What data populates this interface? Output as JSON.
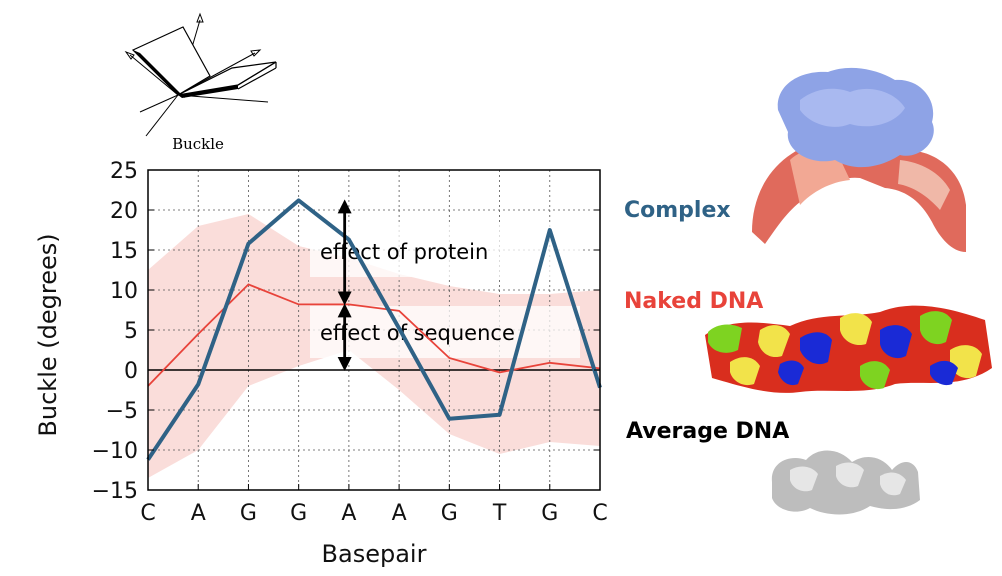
{
  "colors": {
    "complex": "#2f6286",
    "naked": "#e8433a",
    "average": "#000000",
    "band": "#f9d7d3"
  },
  "diagram": {
    "label": "Buckle",
    "icon": "buckle-diagram-icon"
  },
  "legend": {
    "complex": "Complex",
    "naked": "Naked DNA",
    "average": "Average DNA"
  },
  "images": {
    "complex": "protein-dna-complex-structure",
    "naked": "naked-dna-structure",
    "average": "average-dna-structure"
  },
  "chart_data": {
    "type": "line",
    "categories": [
      "C",
      "A",
      "G",
      "G",
      "A",
      "A",
      "G",
      "T",
      "G",
      "C"
    ],
    "xlabel": "Basepair",
    "ylabel": "Buckle (degrees)",
    "ylim": [
      -15,
      25
    ],
    "yticks": [
      -15,
      -10,
      -5,
      0,
      5,
      10,
      15,
      20,
      25
    ],
    "grid": true,
    "series": [
      {
        "name": "Complex",
        "values": [
          -11.2,
          -1.8,
          15.8,
          21.2,
          16.3,
          5.2,
          -6.1,
          -5.6,
          17.5,
          -2.2
        ]
      },
      {
        "name": "Naked DNA",
        "values": [
          -2.0,
          4.5,
          10.7,
          8.2,
          8.2,
          7.4,
          1.5,
          -0.3,
          0.9,
          0.2
        ]
      },
      {
        "name": "Average DNA",
        "values": [
          0,
          0,
          0,
          0,
          0,
          0,
          0,
          0,
          0,
          0
        ]
      }
    ],
    "band": {
      "upper": [
        12.5,
        18.0,
        19.5,
        15.5,
        14.0,
        12.0,
        10.5,
        9.5,
        9.5,
        10.0
      ],
      "lower": [
        -13.5,
        -10.0,
        -2.0,
        0.5,
        2.5,
        -2.5,
        -8.0,
        -10.5,
        -9.0,
        -9.5
      ]
    },
    "annotations": [
      {
        "text": "effect of protein",
        "from": 21.2,
        "to": 8.2
      },
      {
        "text": "effect of sequence",
        "from": 8.2,
        "to": 0
      }
    ]
  }
}
